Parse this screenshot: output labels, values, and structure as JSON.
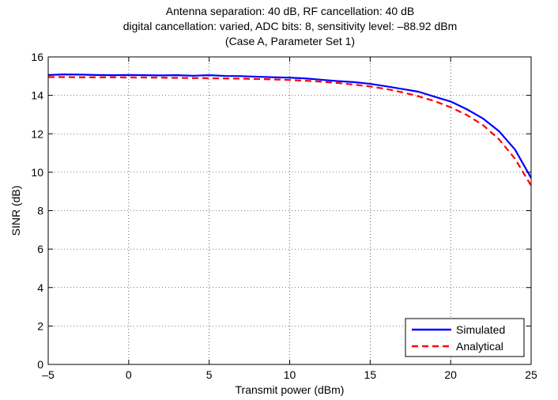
{
  "chart_data": {
    "type": "line",
    "title_lines": [
      "Antenna separation: 40 dB, RF cancellation: 40 dB",
      "digital cancellation: varied, ADC bits: 8, sensitivity level: –88.92 dBm",
      "(Case A, Parameter Set 1)"
    ],
    "xlabel": "Transmit power (dBm)",
    "ylabel": "SINR (dB)",
    "xlim": [
      -5,
      25
    ],
    "ylim": [
      0,
      16
    ],
    "xticks": [
      -5,
      0,
      5,
      10,
      15,
      20,
      25
    ],
    "yticks": [
      0,
      2,
      4,
      6,
      8,
      10,
      12,
      14,
      16
    ],
    "xtick_labels": [
      "–5",
      "0",
      "5",
      "10",
      "15",
      "20",
      "25"
    ],
    "ytick_labels": [
      "0",
      "2",
      "4",
      "6",
      "8",
      "10",
      "12",
      "14",
      "16"
    ],
    "grid": true,
    "legend_position": "bottom-right",
    "series": [
      {
        "name": "Simulated",
        "color": "#0000ff",
        "style": "solid",
        "x": [
          -5,
          -4,
          -3,
          -2,
          -1,
          0,
          1,
          2,
          3,
          4,
          5,
          6,
          7,
          8,
          9,
          10,
          11,
          12,
          13,
          14,
          15,
          16,
          17,
          18,
          19,
          20,
          21,
          22,
          23,
          24,
          25
        ],
        "y": [
          15.06,
          15.09,
          15.08,
          15.06,
          15.05,
          15.06,
          15.05,
          15.04,
          15.05,
          15.02,
          15.05,
          15.01,
          15.0,
          14.97,
          14.94,
          14.92,
          14.88,
          14.81,
          14.74,
          14.69,
          14.6,
          14.47,
          14.33,
          14.19,
          13.93,
          13.68,
          13.28,
          12.8,
          12.14,
          11.18,
          9.7
        ]
      },
      {
        "name": "Analytical",
        "color": "#ff0000",
        "style": "dashed",
        "x": [
          -5,
          -4,
          -3,
          -2,
          -1,
          0,
          1,
          2,
          3,
          4,
          5,
          6,
          7,
          8,
          9,
          10,
          11,
          12,
          13,
          14,
          15,
          16,
          17,
          18,
          19,
          20,
          21,
          22,
          23,
          24,
          25
        ],
        "y": [
          14.95,
          14.95,
          14.94,
          14.94,
          14.94,
          14.93,
          14.93,
          14.92,
          14.91,
          14.9,
          14.89,
          14.88,
          14.87,
          14.85,
          14.83,
          14.8,
          14.76,
          14.71,
          14.64,
          14.56,
          14.46,
          14.33,
          14.16,
          13.95,
          13.7,
          13.38,
          12.98,
          12.46,
          11.72,
          10.7,
          9.3
        ]
      }
    ]
  }
}
